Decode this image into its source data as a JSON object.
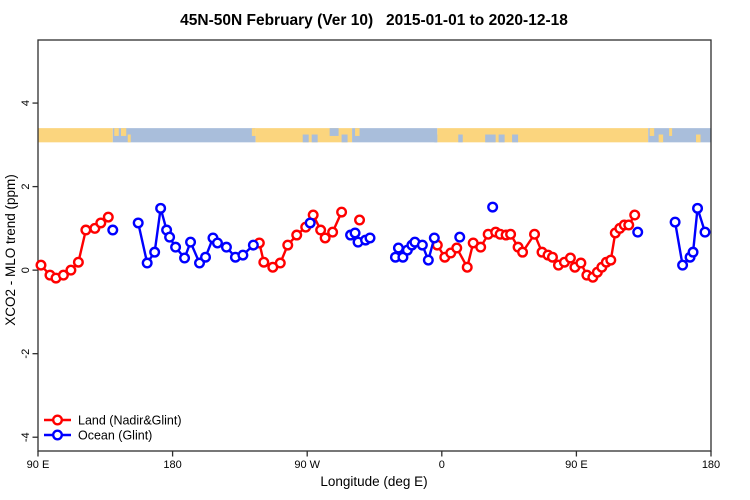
{
  "chart_data": {
    "type": "line",
    "title": "45N-50N February (Ver 10)   2015-01-01 to 2020-12-18",
    "xlabel": "Longitude (deg E)",
    "ylabel": "XCO2 - MLO trend (ppm)",
    "xlim": [
      90,
      540
    ],
    "ylim": [
      -4.33,
      5.51
    ],
    "grid": false,
    "x_ticks": [
      {
        "lon": 90,
        "label": "90 E"
      },
      {
        "lon": 180,
        "label": "180"
      },
      {
        "lon": 270,
        "label": "90 W"
      },
      {
        "lon": 360,
        "label": "0"
      },
      {
        "lon": 450,
        "label": "90 E"
      },
      {
        "lon": 540,
        "label": "180"
      }
    ],
    "y_ticks": [
      {
        "v": -4,
        "label": "-4"
      },
      {
        "v": -2,
        "label": "-2"
      },
      {
        "v": 0,
        "label": "0"
      },
      {
        "v": 2,
        "label": "2"
      },
      {
        "v": 4,
        "label": "4"
      }
    ],
    "colors": {
      "land": "#ff0000",
      "ocean": "#0000ff",
      "strip_land": "#fbd57e",
      "strip_ocean": "#a9bedb",
      "axis": "#2e2e2e",
      "point_fill": "#ffffff"
    },
    "strip": {
      "top_value": 3.4,
      "bottom_value": 3.06,
      "segments": [
        {
          "from": 90,
          "to": 140,
          "type": "land"
        },
        {
          "from": 140,
          "to": 235.5,
          "type": "ocean"
        },
        {
          "from": 235.5,
          "to": 300,
          "type": "land"
        },
        {
          "from": 300,
          "to": 357,
          "type": "ocean"
        },
        {
          "from": 357,
          "to": 498,
          "type": "land"
        },
        {
          "from": 498,
          "to": 540,
          "type": "ocean"
        }
      ],
      "specks": [
        {
          "from": 141,
          "to": 144,
          "type": "land",
          "part": "top"
        },
        {
          "from": 145.5,
          "to": 149,
          "type": "land",
          "part": "top"
        },
        {
          "from": 150,
          "to": 152,
          "type": "land",
          "part": "bottom"
        },
        {
          "from": 233,
          "to": 235.5,
          "type": "land",
          "part": "top"
        },
        {
          "from": 267,
          "to": 271,
          "type": "ocean",
          "part": "bottom"
        },
        {
          "from": 273,
          "to": 277,
          "type": "ocean",
          "part": "bottom"
        },
        {
          "from": 285,
          "to": 291,
          "type": "ocean",
          "part": "top"
        },
        {
          "from": 293,
          "to": 297,
          "type": "ocean",
          "part": "bottom"
        },
        {
          "from": 302,
          "to": 305,
          "type": "land",
          "part": "top"
        },
        {
          "from": 355,
          "to": 357,
          "type": "ocean",
          "part": "bottom"
        },
        {
          "from": 371,
          "to": 374,
          "type": "ocean",
          "part": "bottom"
        },
        {
          "from": 389,
          "to": 396,
          "type": "ocean",
          "part": "bottom"
        },
        {
          "from": 398,
          "to": 402,
          "type": "ocean",
          "part": "bottom"
        },
        {
          "from": 407,
          "to": 411,
          "type": "ocean",
          "part": "bottom"
        },
        {
          "from": 499,
          "to": 502,
          "type": "land",
          "part": "top"
        },
        {
          "from": 505,
          "to": 508,
          "type": "land",
          "part": "bottom"
        },
        {
          "from": 512,
          "to": 514,
          "type": "land",
          "part": "top"
        },
        {
          "from": 530,
          "to": 533,
          "type": "land",
          "part": "bottom"
        }
      ]
    },
    "series": [
      {
        "name": "Land (Nadir&Glint)",
        "color_key": "land",
        "segments": [
          [
            [
              92,
              0.12
            ],
            [
              98,
              -0.12
            ],
            [
              102,
              -0.19
            ],
            [
              107,
              -0.12
            ],
            [
              112,
              0.0
            ],
            [
              117,
              0.19
            ],
            [
              122,
              0.96
            ],
            [
              128,
              1.0
            ],
            [
              132,
              1.13
            ],
            [
              137,
              1.27
            ]
          ],
          [
            [
              238,
              0.65
            ],
            [
              241,
              0.19
            ],
            [
              247,
              0.07
            ],
            [
              252,
              0.17
            ],
            [
              257,
              0.6
            ],
            [
              263,
              0.84
            ],
            [
              269,
              1.03
            ],
            [
              274,
              1.32
            ],
            [
              279,
              0.96
            ],
            [
              282,
              0.77
            ],
            [
              287,
              0.91
            ],
            [
              293,
              1.39
            ]
          ],
          [
            [
              305,
              1.2
            ]
          ],
          [
            [
              357,
              0.6
            ],
            [
              362,
              0.31
            ],
            [
              366,
              0.41
            ],
            [
              370,
              0.53
            ],
            [
              377,
              0.07
            ],
            [
              381,
              0.65
            ],
            [
              386,
              0.55
            ],
            [
              391,
              0.86
            ],
            [
              396,
              0.91
            ],
            [
              399,
              0.86
            ],
            [
              403,
              0.84
            ],
            [
              406,
              0.86
            ],
            [
              411,
              0.55
            ],
            [
              414,
              0.43
            ],
            [
              422,
              0.86
            ],
            [
              427,
              0.43
            ],
            [
              431,
              0.36
            ],
            [
              434,
              0.31
            ],
            [
              438,
              0.12
            ],
            [
              442,
              0.19
            ],
            [
              446,
              0.29
            ],
            [
              449,
              0.07
            ],
            [
              453,
              0.17
            ],
            [
              457,
              -0.12
            ],
            [
              461,
              -0.17
            ],
            [
              464,
              -0.05
            ],
            [
              467,
              0.07
            ],
            [
              470,
              0.19
            ],
            [
              473,
              0.24
            ],
            [
              476,
              0.89
            ],
            [
              479,
              1.0
            ],
            [
              482,
              1.08
            ],
            [
              485,
              1.08
            ],
            [
              489,
              1.32
            ]
          ]
        ]
      },
      {
        "name": "Ocean (Glint)",
        "color_key": "ocean",
        "segments": [
          [
            [
              140,
              0.96
            ]
          ],
          [
            [
              157,
              1.13
            ],
            [
              163,
              0.17
            ],
            [
              168,
              0.43
            ],
            [
              172,
              1.48
            ],
            [
              176,
              0.96
            ],
            [
              178,
              0.79
            ],
            [
              182,
              0.55
            ],
            [
              188,
              0.29
            ],
            [
              192,
              0.67
            ],
            [
              198,
              0.17
            ],
            [
              202,
              0.31
            ],
            [
              207,
              0.77
            ],
            [
              210,
              0.65
            ],
            [
              216,
              0.55
            ],
            [
              222,
              0.31
            ],
            [
              227,
              0.36
            ],
            [
              234,
              0.6
            ]
          ],
          [
            [
              272,
              1.13
            ]
          ],
          [
            [
              299,
              0.84
            ],
            [
              302,
              0.89
            ],
            [
              304,
              0.67
            ],
            [
              309,
              0.72
            ],
            [
              312,
              0.77
            ]
          ],
          [
            [
              329,
              0.31
            ],
            [
              331,
              0.53
            ],
            [
              334,
              0.31
            ],
            [
              337,
              0.48
            ],
            [
              340,
              0.6
            ],
            [
              342,
              0.67
            ],
            [
              347,
              0.6
            ],
            [
              351,
              0.24
            ],
            [
              355,
              0.77
            ]
          ],
          [
            [
              372,
              0.79
            ]
          ],
          [
            [
              394,
              1.51
            ]
          ],
          [
            [
              491,
              0.91
            ]
          ],
          [
            [
              516,
              1.15
            ],
            [
              521,
              0.12
            ],
            [
              526,
              0.31
            ],
            [
              528,
              0.43
            ],
            [
              531,
              1.48
            ],
            [
              536,
              0.91
            ]
          ]
        ]
      }
    ],
    "legend": {
      "position": "bottom-left",
      "entries": [
        {
          "label": "Land (Nadir&Glint)",
          "color_key": "land"
        },
        {
          "label": "Ocean (Glint)",
          "color_key": "ocean"
        }
      ]
    }
  }
}
